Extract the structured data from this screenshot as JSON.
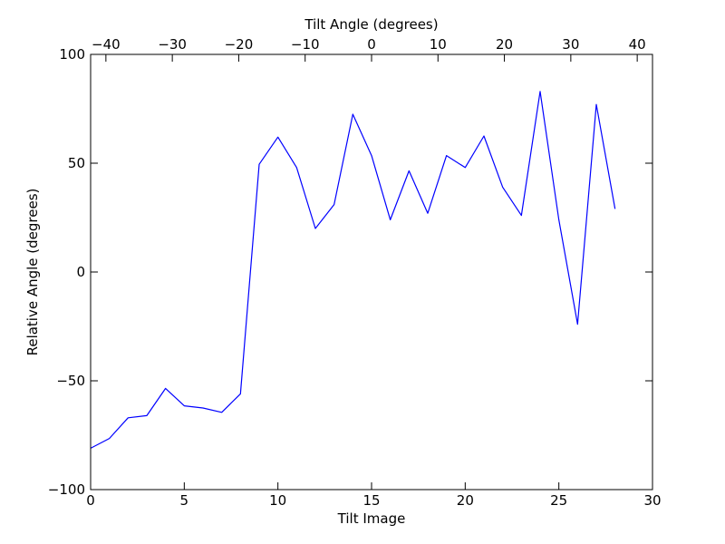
{
  "chart_data": {
    "type": "line",
    "xlabel": "Tilt Image",
    "ylabel": "Relative Angle (degrees)",
    "top_xlabel": "Tilt Angle (degrees)",
    "xlim": [
      0,
      30
    ],
    "ylim": [
      -100,
      100
    ],
    "top_xlim": [
      -42.3,
      42.3
    ],
    "x_ticks": [
      0,
      5,
      10,
      15,
      20,
      25,
      30
    ],
    "y_ticks": [
      -100,
      -50,
      0,
      50,
      100
    ],
    "top_x_ticks": [
      -40,
      -30,
      -20,
      -10,
      0,
      10,
      20,
      30,
      40
    ],
    "x_tick_labels": [
      "0",
      "5",
      "10",
      "15",
      "20",
      "25",
      "30"
    ],
    "y_tick_labels": [
      "−100",
      "−50",
      "0",
      "50",
      "100"
    ],
    "top_x_tick_labels": [
      "−40",
      "−30",
      "−20",
      "−10",
      "0",
      "10",
      "20",
      "30",
      "40"
    ],
    "grid": false,
    "series": [
      {
        "color": "#0000ff",
        "x": [
          0,
          1,
          2,
          3,
          4,
          5,
          6,
          7,
          8,
          9,
          10,
          11,
          12,
          13,
          14,
          15,
          16,
          17,
          18,
          19,
          20,
          21,
          22,
          23,
          24,
          25,
          26,
          27,
          28
        ],
        "y": [
          -81,
          -76.5,
          -67,
          -66,
          -53.5,
          -61.5,
          -62.5,
          -64.5,
          -56,
          49.5,
          62,
          48,
          20,
          31,
          72.5,
          53.5,
          24,
          46.5,
          27,
          53.5,
          48,
          62.5,
          39,
          26,
          83,
          24,
          -24,
          77,
          29
        ]
      }
    ]
  }
}
